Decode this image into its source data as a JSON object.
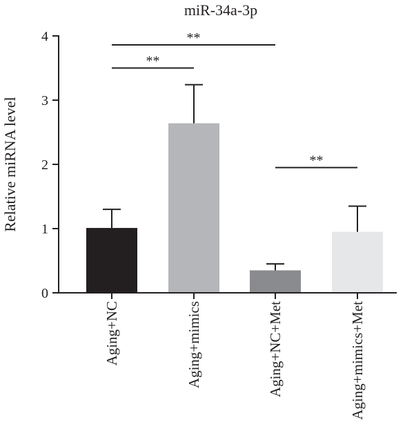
{
  "chart_data": {
    "type": "bar",
    "title": "miR-34a-3p",
    "ylabel": "Relative miRNA level",
    "xlabel": "",
    "ylim": [
      0,
      4
    ],
    "yticks": [
      0,
      1,
      2,
      3,
      4
    ],
    "grid": false,
    "categories": [
      "Aging+NC",
      "Aging+mimics",
      "Aging+NC+Met",
      "Aging+mimics+Met"
    ],
    "values": [
      1.01,
      2.64,
      0.35,
      0.95
    ],
    "errors": [
      0.29,
      0.6,
      0.1,
      0.4
    ],
    "colors": [
      "#231f20",
      "#b5b6b9",
      "#8a8b8e",
      "#e6e7e8"
    ],
    "significance": [
      {
        "from": 0,
        "to": 1,
        "label": "**",
        "y": 3.5
      },
      {
        "from": 0,
        "to": 2,
        "label": "**",
        "y": 3.86
      },
      {
        "from": 2,
        "to": 3,
        "label": "**",
        "y": 1.95
      }
    ]
  }
}
